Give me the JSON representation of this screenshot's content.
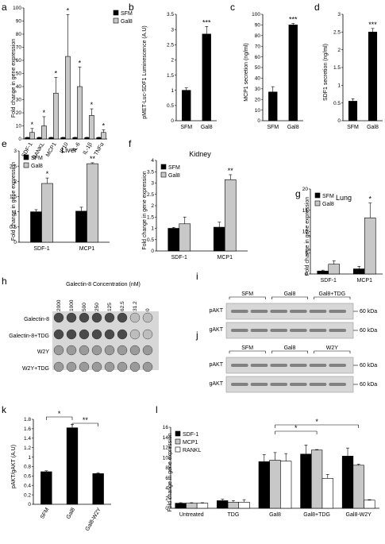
{
  "colors": {
    "black": "#000000",
    "gray": "#c8c8c8",
    "white": "#ffffff",
    "blot_bg": "#d7d7d7",
    "band_dark": "#3a3a3a"
  },
  "chart_data": [
    {
      "id": "a",
      "letter": "a",
      "type": "bar",
      "categories": [
        "SDF-1",
        "RANKL",
        "MCP1",
        "IP10",
        "IL-6",
        "IL-1β",
        "TNFα"
      ],
      "series": [
        {
          "name": "SFM",
          "color": "black",
          "values": [
            1,
            1,
            1,
            1,
            1,
            1,
            1
          ],
          "errors": [
            0.3,
            0.3,
            0.3,
            0.3,
            0.3,
            0.3,
            0.3
          ]
        },
        {
          "name": "Gal8",
          "color": "gray",
          "values": [
            5,
            10,
            35,
            63,
            40,
            18,
            5
          ],
          "errors": [
            3,
            7,
            12,
            32,
            15,
            5,
            2
          ]
        }
      ],
      "sig": [
        "*",
        "*",
        "*",
        "*",
        "*",
        "*",
        "*"
      ],
      "ylabel": "Fold change in gene expression",
      "ylim": [
        0,
        100
      ],
      "yticks": [
        0,
        10,
        20,
        30,
        40,
        50,
        60,
        70,
        80,
        90,
        100
      ],
      "legend": "top-right",
      "rotate_cats": true
    },
    {
      "id": "b",
      "letter": "b",
      "type": "bar",
      "categories": [
        "SFM",
        "Gal8"
      ],
      "values": [
        1.0,
        2.85
      ],
      "errors": [
        0.08,
        0.25
      ],
      "sig": [
        "",
        "***"
      ],
      "ylabel": "pMET-Luc-SDF1 Luminescence (A.U)",
      "ylim": [
        0,
        3.5
      ],
      "yticks": [
        0,
        0.5,
        1,
        1.5,
        2,
        2.5,
        3,
        3.5
      ]
    },
    {
      "id": "c",
      "letter": "c",
      "type": "bar",
      "categories": [
        "SFM",
        "Gal8"
      ],
      "values": [
        27,
        90
      ],
      "errors": [
        5,
        1.5
      ],
      "sig": [
        "",
        "***"
      ],
      "ylabel": "MCP1 secretion (ng/ml)",
      "ylim": [
        0,
        100
      ],
      "yticks": [
        0,
        10,
        20,
        30,
        40,
        50,
        60,
        70,
        80,
        90,
        100
      ]
    },
    {
      "id": "d",
      "letter": "d",
      "type": "bar",
      "categories": [
        "SFM",
        "Gal8"
      ],
      "values": [
        0.55,
        2.5
      ],
      "errors": [
        0.07,
        0.1
      ],
      "sig": [
        "",
        "***"
      ],
      "ylabel": "SDF1 secretion (ng/ml)",
      "ylim": [
        0,
        3
      ],
      "yticks": [
        0,
        0.5,
        1,
        1.5,
        2,
        2.5,
        3
      ]
    },
    {
      "id": "e",
      "letter": "e",
      "type": "bar",
      "title": "Liver",
      "categories": [
        "SDF-1",
        "MCP1"
      ],
      "series": [
        {
          "name": "SFM",
          "color": "black",
          "values": [
            1.0,
            1.02
          ],
          "errors": [
            0.07,
            0.13
          ]
        },
        {
          "name": "Gal8",
          "color": "gray",
          "values": [
            1.93,
            2.58
          ],
          "errors": [
            0.18,
            0.03
          ]
        }
      ],
      "sig": [
        "*",
        "**"
      ],
      "ylabel": "Fold change in gene expression",
      "ylim": [
        0,
        3
      ],
      "yticks": [
        0,
        0.5,
        1,
        1.5,
        2,
        2.5,
        3
      ],
      "legend": "top-left"
    },
    {
      "id": "f",
      "letter": "f",
      "type": "bar",
      "title": "Kidney",
      "categories": [
        "SDF-1",
        "MCP1"
      ],
      "series": [
        {
          "name": "SFM",
          "color": "black",
          "values": [
            1.0,
            1.05
          ],
          "errors": [
            0.04,
            0.22
          ]
        },
        {
          "name": "Gal8",
          "color": "gray",
          "values": [
            1.2,
            3.15
          ],
          "errors": [
            0.3,
            0.22
          ]
        }
      ],
      "sig": [
        "",
        "**"
      ],
      "ylabel": "Fold change in gene expression",
      "ylim": [
        0,
        4
      ],
      "yticks": [
        0,
        0.5,
        1,
        1.5,
        2,
        2.5,
        3,
        3.5,
        4
      ],
      "legend": "top-left"
    },
    {
      "id": "g",
      "letter": "g",
      "type": "bar",
      "title": "Lung",
      "categories": [
        "SDF-1",
        "MCP1"
      ],
      "series": [
        {
          "name": "SFM",
          "color": "black",
          "values": [
            0.7,
            1.2
          ],
          "errors": [
            0.2,
            0.6
          ]
        },
        {
          "name": "Gal8",
          "color": "gray",
          "values": [
            2.3,
            13.2
          ],
          "errors": [
            0.8,
            3.5
          ]
        }
      ],
      "sig": [
        "",
        "*"
      ],
      "ylabel": "Fold change in gene expression",
      "ylim": [
        0,
        20
      ],
      "yticks": [
        0,
        5,
        10,
        15,
        20
      ],
      "legend": "top-left"
    },
    {
      "id": "k",
      "letter": "k",
      "type": "bar",
      "categories": [
        "SFM",
        "Gal8",
        "Gal8-W2Y"
      ],
      "values": [
        0.69,
        1.62,
        0.65
      ],
      "errors": [
        0.02,
        0.07,
        0.02
      ],
      "ylabel": "pAKT/gAKT  (A.U)",
      "ylim": [
        0,
        1.8
      ],
      "yticks": [
        0,
        0.2,
        0.4,
        0.6,
        0.8,
        1,
        1.2,
        1.4,
        1.6,
        1.8
      ],
      "rotate_cats": true,
      "brackets": [
        {
          "from": 0,
          "to": 1,
          "label": "*"
        },
        {
          "from": 1,
          "to": 2,
          "label": "**"
        }
      ]
    },
    {
      "id": "l",
      "letter": "l",
      "type": "bar",
      "categories": [
        "Untreated",
        "TDG",
        "Gal8",
        "Gal8+TDG",
        "Gal8-W2Y"
      ],
      "series": [
        {
          "name": "SDF-1",
          "color": "black",
          "values": [
            1.0,
            1.5,
            9.2,
            10.7,
            10.3
          ],
          "errors": [
            0.1,
            0.3,
            1.4,
            1.8,
            1.6
          ]
        },
        {
          "name": "MCP1",
          "color": "gray",
          "values": [
            1.0,
            1.2,
            9.5,
            11.5,
            8.5
          ],
          "errors": [
            0.1,
            0.3,
            1.5,
            0.1,
            0.2
          ]
        },
        {
          "name": "RANKL",
          "color": "white",
          "values": [
            1.0,
            1.2,
            9.3,
            5.9,
            1.6
          ],
          "errors": [
            0.1,
            0.5,
            1.5,
            0.8,
            0.1
          ]
        }
      ],
      "ylabel": "Fold change in gene expression",
      "ylim": [
        0,
        16
      ],
      "yticks": [
        0,
        2,
        4,
        6,
        8,
        10,
        12,
        14,
        16
      ],
      "legend": "top-left",
      "brackets": [
        {
          "from": 2,
          "to": 4,
          "label": "*"
        },
        {
          "from": 2,
          "to": 3,
          "label": "*"
        }
      ]
    }
  ],
  "blots": {
    "h": {
      "letter": "h",
      "title": "Galectin-8 Concentration (nM)",
      "concentrations": [
        "2000",
        "1000",
        "500",
        "250",
        "125",
        "62.5",
        "31.2",
        "0"
      ],
      "rows": [
        "Galectin-8",
        "Galectin-8+TDG",
        "W2Y",
        "W2Y+TDG"
      ]
    },
    "i": {
      "letter": "i",
      "groups": [
        "SFM",
        "Gal8",
        "Gal8+TDG"
      ],
      "rows": [
        "pAKT",
        "gAKT"
      ],
      "markers": [
        "60 kDa",
        "60 kDa"
      ]
    },
    "j": {
      "letter": "j",
      "groups": [
        "SFM",
        "Gal8",
        "W2Y"
      ],
      "rows": [
        "pAKT",
        "gAKT"
      ],
      "markers": [
        "60 kDa",
        "60 kDa"
      ]
    }
  }
}
